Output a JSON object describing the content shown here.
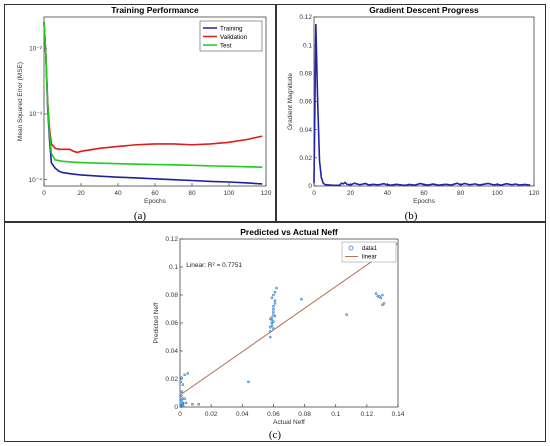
{
  "captions": {
    "a": "(a)",
    "b": "(b)",
    "c": "(c)"
  },
  "colors": {
    "training": "#1f1fa0",
    "validation": "#e01b1b",
    "test": "#1ecb1e",
    "gradient": "#2222aa",
    "scatter": "#3a86d6",
    "fit": "#b5705a"
  },
  "chart_data": [
    {
      "id": "a",
      "type": "line",
      "title": "Training Performance",
      "xlabel": "Epochs",
      "ylabel": "Mean Squared Error (MSE)",
      "yscale": "log",
      "xlim": [
        0,
        120
      ],
      "ylim": [
        8e-05,
        0.03
      ],
      "xticks": [
        0,
        20,
        40,
        60,
        80,
        100,
        120
      ],
      "yticks": [
        {
          "value": 0.0001,
          "label": "10⁻⁴"
        },
        {
          "value": 0.001,
          "label": "10⁻³"
        },
        {
          "value": 0.01,
          "label": "10⁻²"
        }
      ],
      "legend_position": "top-right",
      "series": [
        {
          "name": "Training",
          "color_key": "training",
          "x": [
            0,
            1,
            2,
            3,
            4,
            6,
            8,
            10,
            15,
            20,
            30,
            40,
            50,
            60,
            70,
            80,
            90,
            100,
            110,
            118
          ],
          "y": [
            0.025,
            0.008,
            0.0012,
            0.0004,
            0.00018,
            0.00015,
            0.000135,
            0.000128,
            0.000122,
            0.000118,
            0.000113,
            0.000109,
            0.000106,
            0.000103,
            0.0001,
            9.7e-05,
            9.4e-05,
            9.2e-05,
            8.9e-05,
            8.6e-05
          ]
        },
        {
          "name": "Validation",
          "color_key": "validation",
          "x": [
            0,
            1,
            2,
            3,
            4,
            6,
            8,
            10,
            14,
            16,
            18,
            20,
            30,
            40,
            50,
            60,
            70,
            80,
            90,
            100,
            110,
            118
          ],
          "y": [
            0.025,
            0.008,
            0.0015,
            0.0006,
            0.00035,
            0.0003,
            0.00029,
            0.00029,
            0.00029,
            0.00027,
            0.00026,
            0.00027,
            0.0003,
            0.00032,
            0.00034,
            0.00035,
            0.00035,
            0.00034,
            0.00035,
            0.00037,
            0.00041,
            0.00046
          ]
        },
        {
          "name": "Test",
          "color_key": "test",
          "x": [
            0,
            1,
            2,
            3,
            4,
            6,
            8,
            10,
            15,
            20,
            30,
            40,
            50,
            60,
            70,
            80,
            90,
            100,
            110,
            118
          ],
          "y": [
            0.025,
            0.008,
            0.0014,
            0.0005,
            0.00025,
            0.0002,
            0.000195,
            0.00019,
            0.000185,
            0.000182,
            0.000178,
            0.000175,
            0.000172,
            0.00017,
            0.000168,
            0.000165,
            0.000162,
            0.00016,
            0.000157,
            0.000155
          ]
        }
      ]
    },
    {
      "id": "b",
      "type": "line",
      "title": "Gradient Descent Progress",
      "xlabel": "Epochs",
      "ylabel": "Gradient Magnitude",
      "xlim": [
        0,
        120
      ],
      "ylim": [
        0,
        0.12
      ],
      "xticks": [
        0,
        20,
        40,
        60,
        80,
        100,
        120
      ],
      "yticks": [
        0,
        0.02,
        0.04,
        0.06,
        0.08,
        0.1,
        0.12
      ],
      "series": [
        {
          "name": "",
          "color_key": "gradient",
          "x": [
            0,
            1,
            2,
            3,
            4,
            5,
            6,
            8,
            10,
            14,
            15,
            16,
            17,
            18,
            20,
            22,
            25,
            28,
            30,
            32,
            35,
            38,
            40,
            42,
            45,
            48,
            50,
            52,
            55,
            58,
            60,
            62,
            65,
            68,
            70,
            72,
            75,
            78,
            80,
            82,
            85,
            88,
            90,
            92,
            95,
            98,
            100,
            102,
            105,
            108,
            110,
            112,
            115,
            118
          ],
          "y": [
            0.002,
            0.115,
            0.06,
            0.018,
            0.006,
            0.002,
            0.001,
            0.0008,
            0.0006,
            0.0005,
            0.002,
            0.0015,
            0.0025,
            0.0012,
            0.0008,
            0.002,
            0.0009,
            0.0018,
            0.0007,
            0.0012,
            0.0008,
            0.0016,
            0.0009,
            0.0006,
            0.0012,
            0.0007,
            0.0005,
            0.0011,
            0.0006,
            0.0018,
            0.001,
            0.0007,
            0.0014,
            0.0006,
            0.0009,
            0.0012,
            0.0007,
            0.002,
            0.0008,
            0.0018,
            0.0009,
            0.0015,
            0.0007,
            0.0011,
            0.0018,
            0.0008,
            0.0012,
            0.0006,
            0.0016,
            0.0009,
            0.0014,
            0.0007,
            0.0011,
            0.0006
          ]
        }
      ]
    },
    {
      "id": "c",
      "type": "scatter",
      "title": "Predicted vs Actual Neff",
      "xlabel": "Actual Neff",
      "ylabel": "Predicted Neff",
      "xlim": [
        0,
        0.14
      ],
      "ylim": [
        0,
        0.12
      ],
      "xticks": [
        0,
        0.02,
        0.04,
        0.06,
        0.08,
        0.1,
        0.12,
        0.14
      ],
      "yticks": [
        0,
        0.02,
        0.04,
        0.06,
        0.08,
        0.1,
        0.12
      ],
      "annotation": "Linear: R² = 0.7751",
      "legend_position": "top-right",
      "legend": [
        "data1",
        "linear"
      ],
      "points": {
        "x": [
          0.0005,
          0.0008,
          0.001,
          0.0012,
          0.0015,
          0.002,
          0.0005,
          0.001,
          0.0015,
          0.002,
          0.0008,
          0.0012,
          0.0018,
          0.003,
          0.005,
          0.003,
          0.004,
          0.008,
          0.012,
          0.0005,
          0.001,
          0.002,
          0.044,
          0.058,
          0.058,
          0.058,
          0.059,
          0.059,
          0.059,
          0.06,
          0.06,
          0.06,
          0.06,
          0.061,
          0.061,
          0.059,
          0.06,
          0.061,
          0.062,
          0.058,
          0.06,
          0.059,
          0.06,
          0.061,
          0.078,
          0.107,
          0.126,
          0.127,
          0.129,
          0.13,
          0.131,
          0.13,
          0.128
        ],
        "y": [
          0.0003,
          0.0005,
          0.001,
          0.0015,
          0.002,
          0.0025,
          0.004,
          0.005,
          0.006,
          0.003,
          0.008,
          0.011,
          0.016,
          0.023,
          0.024,
          0.006,
          0.003,
          0.002,
          0.002,
          0.018,
          0.021,
          0.001,
          0.018,
          0.05,
          0.054,
          0.057,
          0.06,
          0.062,
          0.064,
          0.066,
          0.068,
          0.07,
          0.072,
          0.074,
          0.076,
          0.078,
          0.08,
          0.082,
          0.085,
          0.063,
          0.061,
          0.058,
          0.056,
          0.065,
          0.077,
          0.066,
          0.081,
          0.079,
          0.078,
          0.08,
          0.074,
          0.073,
          0.079
        ]
      },
      "fit": {
        "slope": 0.775,
        "intercept": 0.0085
      }
    }
  ]
}
